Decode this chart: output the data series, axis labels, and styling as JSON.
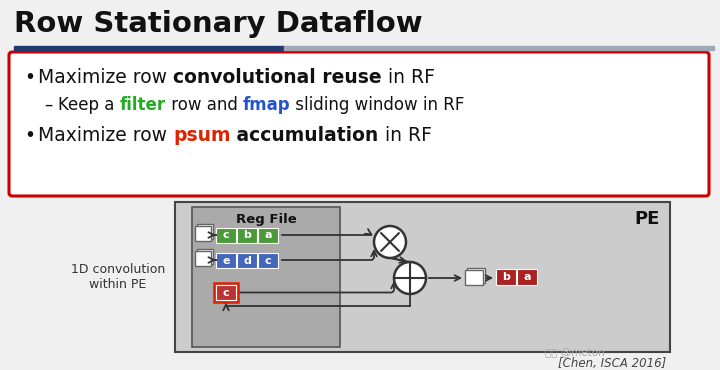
{
  "title": "Row Stationary Dataflow",
  "bg_color": "#f0f0f0",
  "underline_dark": "#1f3a6e",
  "underline_light": "#a0a8b8",
  "red_box_color": "#cc0000",
  "diagram_bg": "#cccccc",
  "regfile_bg": "#aaaaaa",
  "pe_label": "PE",
  "regfile_label": "Reg File",
  "label_left": "1D convolution\nwithin PE",
  "citation": "[Chen, ISCA 2016]",
  "green_color": "#22aa22",
  "blue_color": "#2255cc",
  "red_color": "#dd2200",
  "dark_color": "#111111",
  "filter_cells": [
    "c",
    "b",
    "a"
  ],
  "fmap_cells": [
    "e",
    "d",
    "c"
  ],
  "psum_cell": "c",
  "output_cells": [
    "b",
    "a"
  ],
  "filter_cell_color": "#4a9a3a",
  "fmap_cell_color": "#4466bb",
  "psum_cell_color": "#bb3333",
  "output_cell_color": "#aa2222"
}
